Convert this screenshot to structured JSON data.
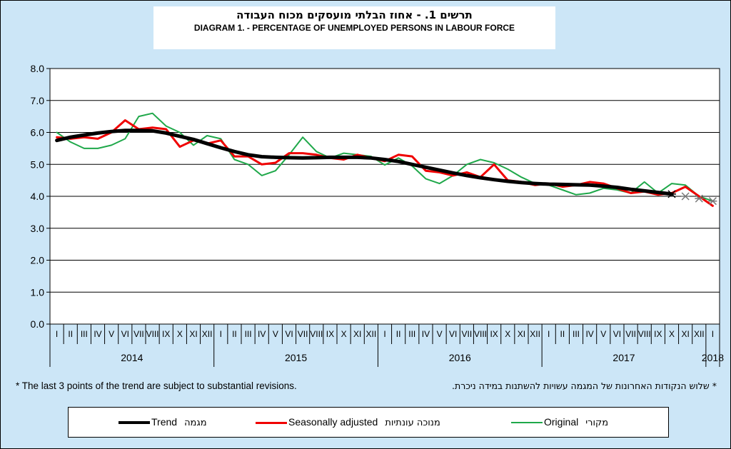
{
  "chart_data": {
    "type": "line",
    "title_he": "תרשים 1. - אחוז הבלתי מועסקים מכוח העבודה",
    "title": "DIAGRAM  1. - PERCENTAGE OF UNEMPLOYED PERSONS IN LABOUR FORCE",
    "ylim": [
      0,
      8
    ],
    "yticks": [
      "0.0",
      "1.0",
      "2.0",
      "3.0",
      "4.0",
      "5.0",
      "6.0",
      "7.0",
      "8.0"
    ],
    "grid": true,
    "months": [
      "I",
      "II",
      "III",
      "IV",
      "V",
      "VI",
      "VII",
      "VIII",
      "IX",
      "X",
      "XI",
      "XII",
      "I",
      "II",
      "III",
      "IV",
      "V",
      "VI",
      "VII",
      "VIII",
      "IX",
      "X",
      "XI",
      "XII",
      "I",
      "II",
      "III",
      "IV",
      "V",
      "VI",
      "VII",
      "VIII",
      "IX",
      "X",
      "XI",
      "XII",
      "I",
      "II",
      "III",
      "IV",
      "V",
      "VI",
      "VII",
      "VIII",
      "IX",
      "X",
      "XI",
      "XII",
      "I"
    ],
    "years": [
      {
        "label": "2014",
        "start": 0,
        "count": 12
      },
      {
        "label": "2015",
        "start": 12,
        "count": 12
      },
      {
        "label": "2016",
        "start": 24,
        "count": 12
      },
      {
        "label": "2017",
        "start": 36,
        "count": 12
      },
      {
        "label": "2018",
        "start": 48,
        "count": 1
      }
    ],
    "series": [
      {
        "name": "Original",
        "name_he": "מקורי",
        "color": "#1fa84a",
        "values": [
          6.0,
          5.7,
          5.5,
          5.5,
          5.6,
          5.8,
          6.5,
          6.6,
          6.2,
          6.0,
          5.6,
          5.9,
          5.8,
          5.15,
          5.0,
          4.65,
          4.8,
          5.3,
          5.85,
          5.4,
          5.2,
          5.35,
          5.3,
          5.25,
          4.98,
          5.2,
          4.95,
          4.55,
          4.4,
          4.65,
          5.0,
          5.15,
          5.05,
          4.85,
          4.6,
          4.4,
          4.35,
          4.2,
          4.05,
          4.1,
          4.25,
          4.2,
          4.1,
          4.45,
          4.1,
          4.4,
          4.35,
          4.0,
          3.85
        ]
      },
      {
        "name": "Seasonally adjusted",
        "name_he": "מנוכה עונתיות",
        "color": "#f00000",
        "values": [
          5.85,
          5.8,
          5.85,
          5.8,
          6.0,
          6.38,
          6.1,
          6.15,
          6.1,
          5.55,
          5.75,
          5.65,
          5.75,
          5.25,
          5.25,
          5.0,
          5.05,
          5.35,
          5.35,
          5.3,
          5.2,
          5.15,
          5.3,
          5.2,
          5.1,
          5.3,
          5.25,
          4.8,
          4.75,
          4.65,
          4.75,
          4.6,
          5.0,
          4.5,
          4.45,
          4.35,
          4.4,
          4.3,
          4.35,
          4.45,
          4.4,
          4.25,
          4.1,
          4.15,
          4.05,
          4.1,
          4.3,
          4.0,
          3.7
        ]
      },
      {
        "name": "Trend",
        "name_he": "מגמה",
        "color": "#000000",
        "values": [
          5.75,
          5.85,
          5.92,
          5.98,
          6.03,
          6.06,
          6.06,
          6.05,
          5.98,
          5.88,
          5.78,
          5.65,
          5.52,
          5.4,
          5.3,
          5.24,
          5.22,
          5.21,
          5.2,
          5.21,
          5.22,
          5.22,
          5.22,
          5.2,
          5.15,
          5.09,
          5.0,
          4.91,
          4.82,
          4.73,
          4.65,
          4.58,
          4.52,
          4.47,
          4.43,
          4.4,
          4.38,
          4.37,
          4.36,
          4.35,
          4.32,
          4.28,
          4.22,
          4.17,
          4.12,
          4.07,
          4.0,
          3.93,
          3.85
        ]
      }
    ],
    "trend_revised_points": 3
  },
  "note_en": "* The last 3 points of the trend are subject to substantial revisions.",
  "note_he": "* שלוש הנקודות האחרונות של המגמה עשויות להשתנות במידה ניכרת.",
  "legend": {
    "trend_en": "Trend",
    "trend_he": "מגמה",
    "sa_en": "Seasonally adjusted",
    "sa_he": "מנוכה עונתיות",
    "orig_en": "Original",
    "orig_he": "מקורי"
  }
}
